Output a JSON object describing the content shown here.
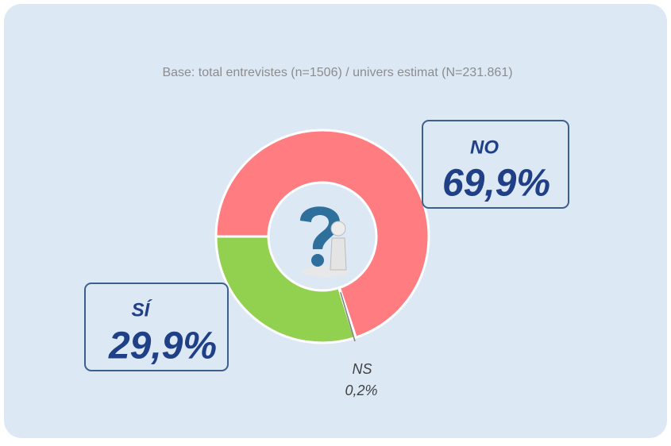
{
  "chart_data": {
    "type": "pie",
    "donut": true,
    "subtitle": "Base: total entrevistes (n=1506) / univers estimat (N=231.861)",
    "categories": [
      "NO",
      "NS",
      "SÍ"
    ],
    "values": [
      69.9,
      0.2,
      29.9
    ],
    "value_labels": [
      "69,9%",
      "0,2%",
      "29,9%"
    ],
    "colors": [
      "#ff7c80",
      "#a6a6a6",
      "#92d050"
    ],
    "start_angle": 270
  }
}
